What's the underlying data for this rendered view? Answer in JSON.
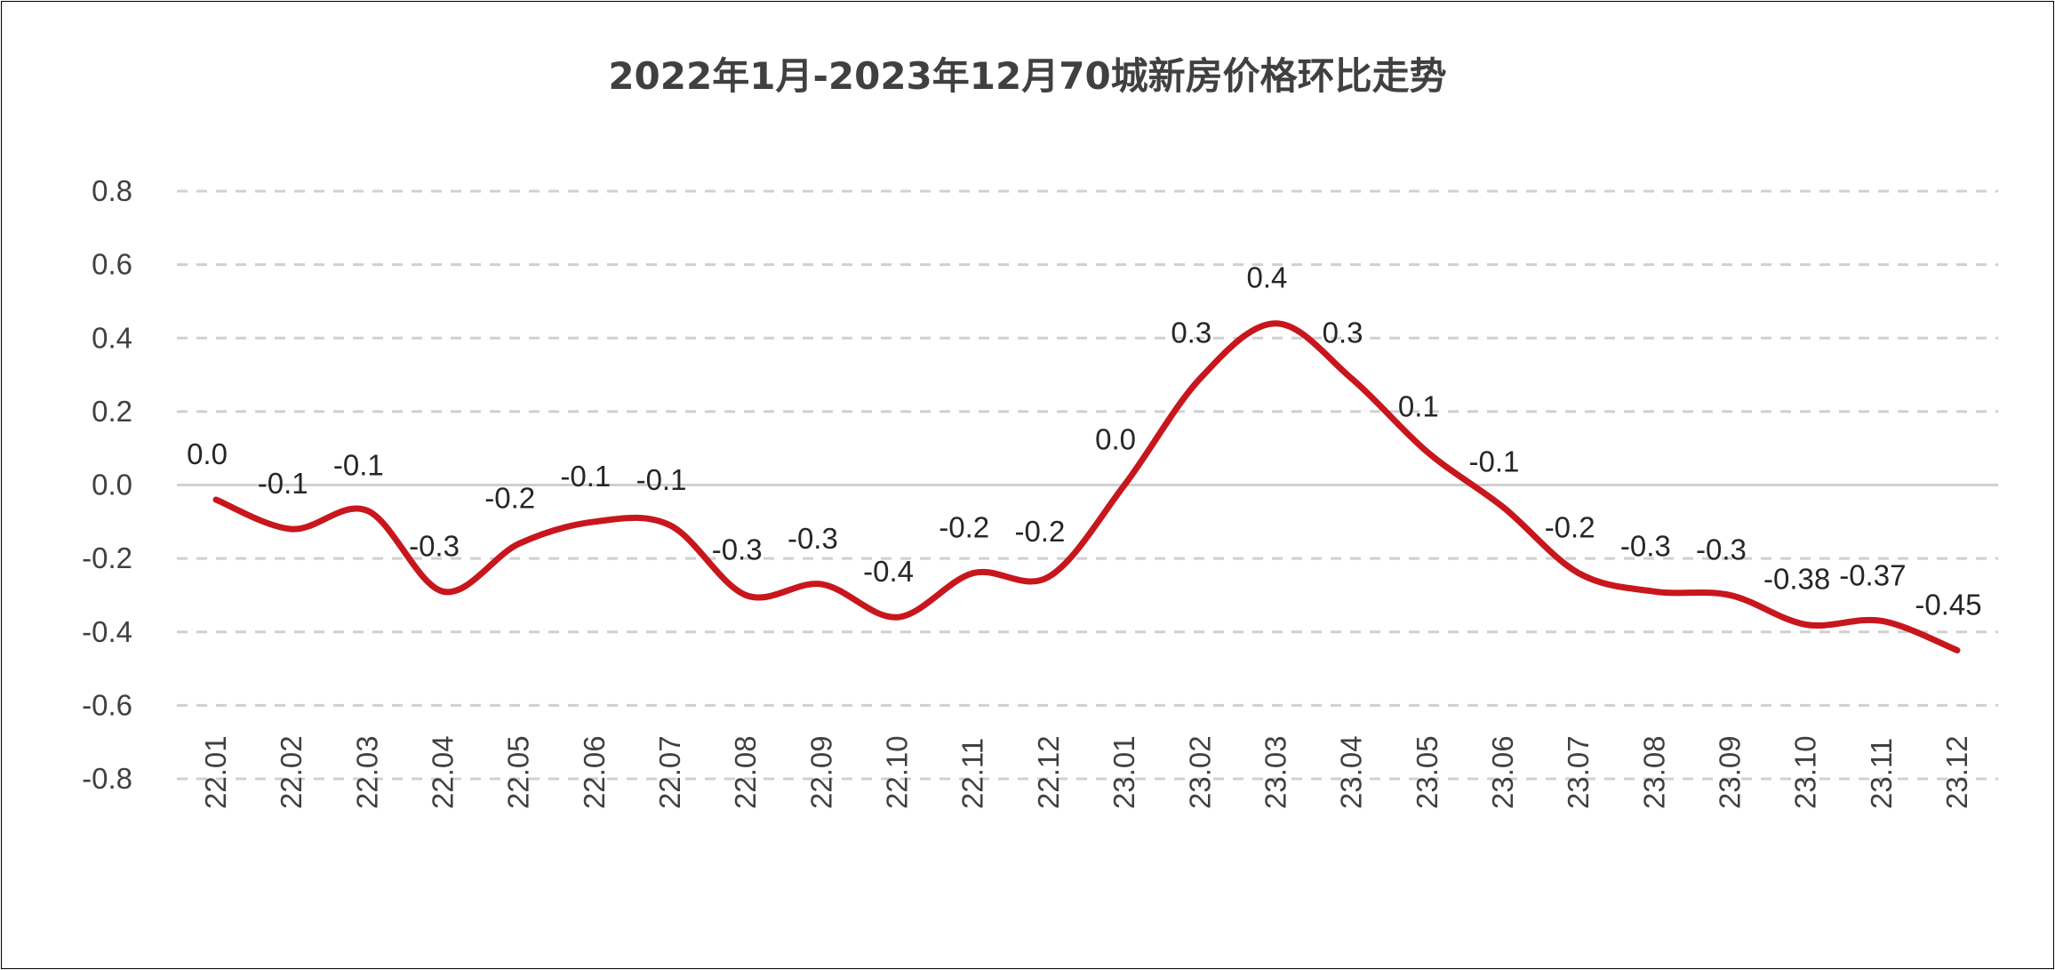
{
  "chart_data": {
    "type": "line",
    "title": "2022年1月-2023年12月70城新房价格环比走势",
    "xlabel": "",
    "ylabel": "",
    "ylim": [
      -0.8,
      0.8
    ],
    "yticks": [
      "0.8",
      "0.6",
      "0.4",
      "0.2",
      "0.0",
      "-0.2",
      "-0.4",
      "-0.6",
      "-0.8"
    ],
    "ytick_values": [
      0.8,
      0.6,
      0.4,
      0.2,
      0,
      -0.2,
      -0.4,
      -0.6,
      -0.8
    ],
    "grid": true,
    "legend": "none",
    "smooth": true,
    "color": "#C8161D",
    "categories": [
      "22.01",
      "22.02",
      "22.03",
      "22.04",
      "22.05",
      "22.06",
      "22.07",
      "22.08",
      "22.09",
      "22.10",
      "22.11",
      "22.12",
      "23.01",
      "23.02",
      "23.03",
      "23.04",
      "23.05",
      "23.06",
      "23.07",
      "23.08",
      "23.09",
      "23.10",
      "23.11",
      "23.12"
    ],
    "values": [
      -0.04,
      -0.12,
      -0.07,
      -0.29,
      -0.16,
      -0.1,
      -0.11,
      -0.3,
      -0.27,
      -0.36,
      -0.24,
      -0.25,
      0.0,
      0.29,
      0.44,
      0.29,
      0.09,
      -0.06,
      -0.24,
      -0.29,
      -0.3,
      -0.38,
      -0.37,
      -0.45
    ],
    "data_labels": [
      "0.0",
      "-0.1",
      "-0.1",
      "-0.3",
      "-0.2",
      "-0.1",
      "-0.1",
      "-0.3",
      "-0.3",
      "-0.4",
      "-0.2",
      "-0.2",
      "0.0",
      "0.3",
      "0.4",
      "0.3",
      "0.1",
      "-0.1",
      "-0.2",
      "-0.3",
      "-0.3",
      "-0.38",
      "-0.37",
      "-0.45"
    ]
  }
}
